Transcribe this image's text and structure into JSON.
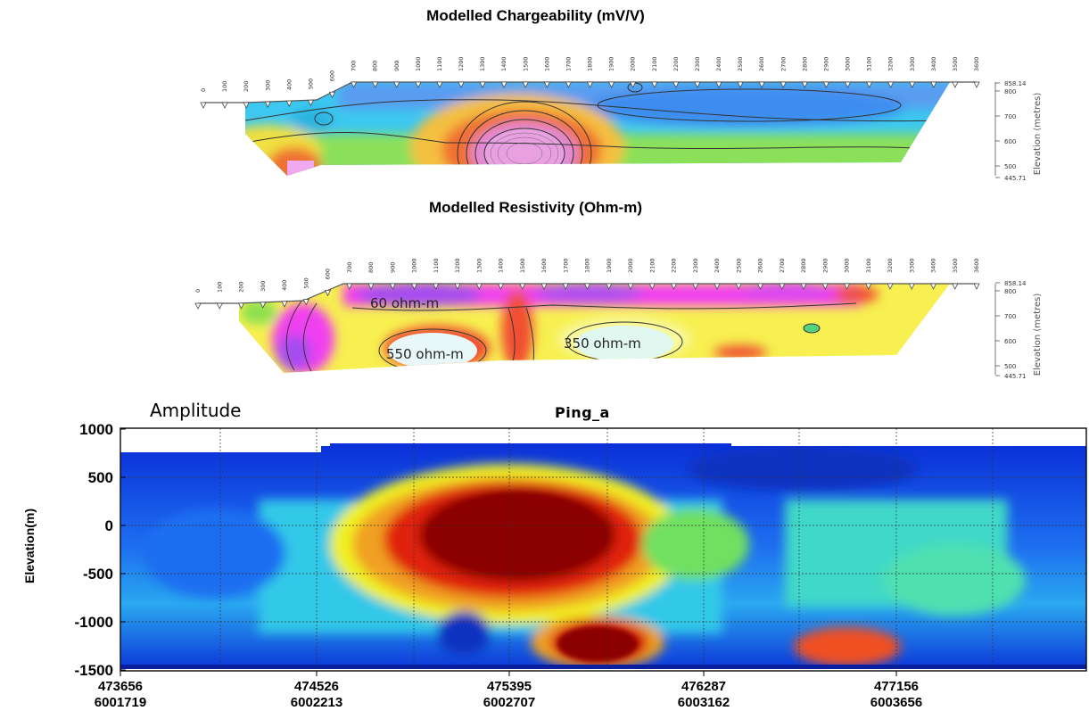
{
  "chart_data": [
    {
      "type": "heatmap",
      "title": "Modelled Chargeability (mV/V)",
      "stations": [
        "0",
        "100",
        "200",
        "300",
        "400",
        "500",
        "600",
        "700",
        "800",
        "900",
        "1000",
        "1100",
        "1200",
        "1300",
        "1400",
        "1500",
        "1600",
        "1700",
        "1800",
        "1900",
        "2000",
        "2100",
        "2200",
        "2300",
        "2400",
        "2500",
        "2600",
        "2700",
        "2800",
        "2900",
        "3000",
        "3100",
        "3200",
        "3300",
        "3400",
        "3500",
        "3600"
      ],
      "elevation_ticks": [
        "858.14",
        "800",
        "700",
        "600",
        "500",
        "445.71"
      ],
      "ylabel": "Elevation (metres)",
      "colors": {
        "low": "#3cc8f0",
        "mid": "#8be05a",
        "high": "#e08cd8"
      }
    },
    {
      "type": "heatmap",
      "title": "Modelled Resistivity (Ohm-m)",
      "stations": [
        "0",
        "100",
        "200",
        "300",
        "400",
        "500",
        "600",
        "700",
        "800",
        "900",
        "1000",
        "1100",
        "1200",
        "1300",
        "1400",
        "1500",
        "1600",
        "1700",
        "1800",
        "1900",
        "2000",
        "2100",
        "2200",
        "2300",
        "2400",
        "2500",
        "2600",
        "2700",
        "2800",
        "2900",
        "3000",
        "3100",
        "3200",
        "3300",
        "3400",
        "3500",
        "3600"
      ],
      "elevation_ticks": [
        "858.14",
        "800",
        "700",
        "600",
        "500",
        "445.71"
      ],
      "ylabel": "Elevation (metres)",
      "annotations": [
        "60 ohm-m",
        "550 ohm-m",
        "350 ohm-m"
      ],
      "colors": {
        "low": "#a64cf0",
        "mid": "#f7f050",
        "high": "#e8f8f8"
      }
    },
    {
      "type": "heatmap",
      "title": "Ping_a",
      "label": "Amplitude",
      "ylabel": "Elevation(m)",
      "ylim": [
        -1500,
        1000
      ],
      "y_ticks": [
        "1000",
        "500",
        "0",
        "-500",
        "-1000",
        "-1500"
      ],
      "x_ticks": [
        {
          "easting": "473656",
          "northing": "6001719"
        },
        {
          "easting": "474526",
          "northing": "6002213"
        },
        {
          "easting": "475395",
          "northing": "6002707"
        },
        {
          "easting": "476287",
          "northing": "6003162"
        },
        {
          "easting": "477156",
          "northing": "6003656"
        }
      ],
      "grid": true,
      "colors": {
        "low": "#0a2fd8",
        "mid": "#f0f020",
        "high": "#8b0000"
      }
    }
  ]
}
